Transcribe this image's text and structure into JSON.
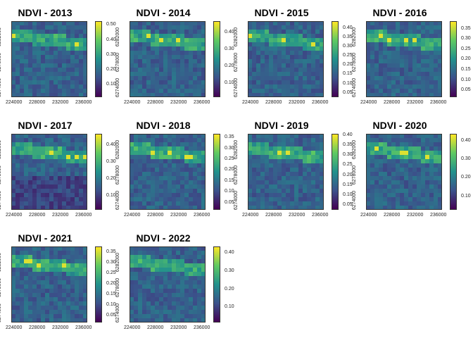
{
  "chart_data": [
    {
      "type": "heatmap",
      "title": "NDVI - 2013",
      "x_ticks": [
        "224000",
        "228000",
        "232000",
        "236000"
      ],
      "y_ticks": [
        "6274000",
        "6278000",
        "6282000"
      ],
      "colorbar": {
        "min": 0.02,
        "max": 0.53,
        "ticks": [
          0.1,
          0.2,
          0.3,
          0.4,
          0.5
        ],
        "labels": [
          "0.10",
          "0.20",
          "0.30",
          "0.40",
          "0.50"
        ]
      }
    },
    {
      "type": "heatmap",
      "title": "NDVI - 2014",
      "x_ticks": [
        "224000",
        "228000",
        "232000",
        "236000"
      ],
      "y_ticks": [
        "6274000",
        "6278000",
        "6282000"
      ],
      "colorbar": {
        "min": 0.02,
        "max": 0.47,
        "ticks": [
          0.1,
          0.2,
          0.3,
          0.4
        ],
        "labels": [
          "0.10",
          "0.20",
          "0.30",
          "0.40"
        ]
      }
    },
    {
      "type": "heatmap",
      "title": "NDVI - 2015",
      "x_ticks": [
        "224000",
        "228000",
        "232000",
        "236000"
      ],
      "y_ticks": [
        "6274000",
        "6278000",
        "6282000"
      ],
      "colorbar": {
        "min": 0.03,
        "max": 0.44,
        "ticks": [
          0.05,
          0.1,
          0.15,
          0.2,
          0.25,
          0.3,
          0.35,
          0.4
        ],
        "labels": [
          "0.05",
          "0.10",
          "0.15",
          "0.20",
          "0.25",
          "0.30",
          "0.35",
          "0.40"
        ]
      }
    },
    {
      "type": "heatmap",
      "title": "NDVI - 2016",
      "x_ticks": [
        "224000",
        "228000",
        "232000",
        "236000"
      ],
      "y_ticks": [
        "6274000",
        "6278000",
        "6282000"
      ],
      "colorbar": {
        "min": 0.02,
        "max": 0.39,
        "ticks": [
          0.05,
          0.1,
          0.15,
          0.2,
          0.25,
          0.3,
          0.35
        ],
        "labels": [
          "0.05",
          "0.10",
          "0.15",
          "0.20",
          "0.25",
          "0.30",
          "0.35"
        ]
      }
    },
    {
      "type": "heatmap",
      "title": "NDVI - 2017",
      "x_ticks": [
        "224000",
        "228000",
        "232000",
        "236000"
      ],
      "y_ticks": [
        "6274000",
        "6278000",
        "6282000"
      ],
      "colorbar": {
        "min": 0.02,
        "max": 0.47,
        "ticks": [
          0.1,
          0.2,
          0.3,
          0.4
        ],
        "labels": [
          "0.10",
          "0.20",
          "0.30",
          "0.40"
        ]
      }
    },
    {
      "type": "heatmap",
      "title": "NDVI - 2018",
      "x_ticks": [
        "224000",
        "228000",
        "232000",
        "236000"
      ],
      "y_ticks": [
        "6274000",
        "6278000",
        "6282000"
      ],
      "colorbar": {
        "min": 0.02,
        "max": 0.37,
        "ticks": [
          0.05,
          0.1,
          0.15,
          0.2,
          0.25,
          0.3,
          0.35
        ],
        "labels": [
          "0.05",
          "0.10",
          "0.15",
          "0.20",
          "0.25",
          "0.30",
          "0.35"
        ]
      }
    },
    {
      "type": "heatmap",
      "title": "NDVI - 2019",
      "x_ticks": [
        "224000",
        "228000",
        "232000",
        "236000"
      ],
      "y_ticks": [
        "6274000",
        "6278000",
        "6282000"
      ],
      "colorbar": {
        "min": 0.03,
        "max": 0.41,
        "ticks": [
          0.05,
          0.1,
          0.15,
          0.2,
          0.25,
          0.3,
          0.35,
          0.4
        ],
        "labels": [
          "0.05",
          "0.10",
          "0.15",
          "0.20",
          "0.25",
          "0.30",
          "0.35",
          "0.40"
        ]
      }
    },
    {
      "type": "heatmap",
      "title": "NDVI - 2020",
      "x_ticks": [
        "224000",
        "228000",
        "232000",
        "236000"
      ],
      "y_ticks": [
        "6274000",
        "6278000",
        "6282000"
      ],
      "colorbar": {
        "min": 0.03,
        "max": 0.44,
        "ticks": [
          0.1,
          0.2,
          0.3,
          0.4
        ],
        "labels": [
          "0.10",
          "0.20",
          "0.30",
          "0.40"
        ]
      }
    },
    {
      "type": "heatmap",
      "title": "NDVI - 2021",
      "x_ticks": [
        "224000",
        "228000",
        "232000",
        "236000"
      ],
      "y_ticks": [
        "6274000",
        "6278000",
        "6282000"
      ],
      "colorbar": {
        "min": 0.02,
        "max": 0.38,
        "ticks": [
          0.05,
          0.1,
          0.15,
          0.2,
          0.25,
          0.3,
          0.35
        ],
        "labels": [
          "0.05",
          "0.10",
          "0.15",
          "0.20",
          "0.25",
          "0.30",
          "0.35"
        ]
      }
    },
    {
      "type": "heatmap",
      "title": "NDVI - 2022",
      "x_ticks": [
        "224000",
        "228000",
        "232000",
        "236000"
      ],
      "y_ticks": [
        "6274000",
        "6278000",
        "6282000"
      ],
      "colorbar": {
        "min": 0.02,
        "max": 0.44,
        "ticks": [
          0.1,
          0.2,
          0.3,
          0.4
        ],
        "labels": [
          "0.10",
          "0.20",
          "0.30",
          "0.40"
        ]
      }
    }
  ],
  "colormap": [
    "#440154",
    "#3b528b",
    "#21918c",
    "#5ec962",
    "#fde725"
  ]
}
